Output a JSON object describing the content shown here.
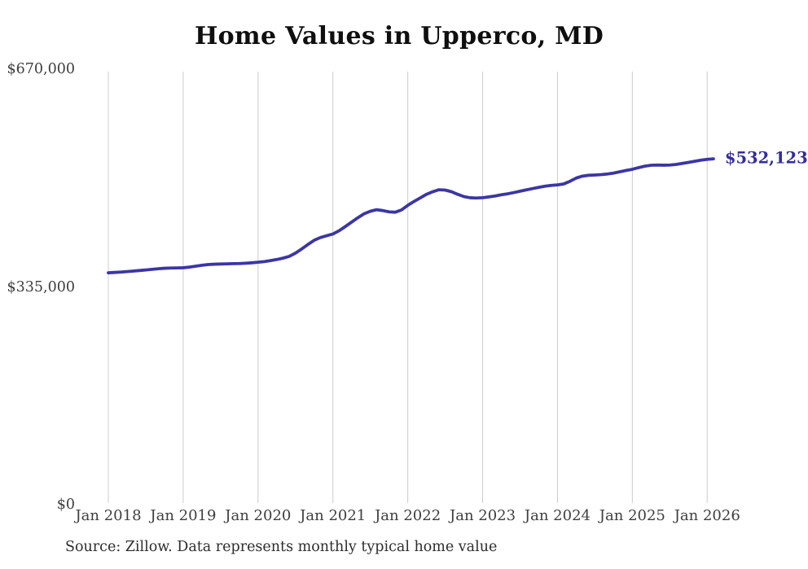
{
  "page": {
    "source_note": "Source: Zillow. Data represents monthly typical home value"
  },
  "chart_data": {
    "type": "line",
    "title": "Home Values in Upperco, MD",
    "xlabel": "",
    "ylabel": "",
    "ylim": [
      0,
      670000
    ],
    "grid": "vertical-only",
    "legend": "none",
    "x_tick_labels": [
      "Jan 2018",
      "Jan 2019",
      "Jan 2020",
      "Jan 2021",
      "Jan 2022",
      "Jan 2023",
      "Jan 2024",
      "Jan 2025",
      "Jan 2026"
    ],
    "y_ticks": [
      {
        "label": "$670,000",
        "value": 670000
      },
      {
        "label": "$335,000",
        "value": 335000
      },
      {
        "label": "$0",
        "value": 0
      }
    ],
    "colors": {
      "line": "#3b36a5",
      "end_label": "#332d9b",
      "grid": "#cccccc",
      "tick_text": "#3e3e3e",
      "title_text": "#0f0f0f"
    },
    "end_label": "$532,123",
    "latest_value": 532123,
    "series": [
      {
        "name": "Monthly typical home value",
        "start_month": "2018-01",
        "interval": "monthly",
        "values": [
          356800,
          357300,
          357900,
          358600,
          359400,
          360300,
          361200,
          362100,
          363000,
          363700,
          364100,
          364300,
          364500,
          365500,
          366900,
          368300,
          369400,
          370000,
          370300,
          370500,
          370800,
          371000,
          371500,
          372200,
          373000,
          374000,
          375500,
          377200,
          379300,
          382000,
          387000,
          393500,
          400300,
          406800,
          411000,
          413800,
          416500,
          421500,
          428000,
          434800,
          441500,
          447500,
          451500,
          453800,
          452500,
          450500,
          450000,
          453500,
          460500,
          466500,
          472000,
          477500,
          481500,
          484500,
          484000,
          481500,
          477500,
          474000,
          472200,
          471800,
          472300,
          473500,
          475000,
          476800,
          478300,
          480200,
          482300,
          484300,
          486300,
          488300,
          490000,
          491200,
          492000,
          493500,
          497500,
          502500,
          505500,
          506800,
          507200,
          507800,
          508800,
          510200,
          512200,
          514200,
          516000,
          518500,
          520800,
          522200,
          522500,
          522300,
          522500,
          523500,
          525000,
          526600,
          528300,
          530100,
          531300,
          532123
        ]
      }
    ]
  }
}
